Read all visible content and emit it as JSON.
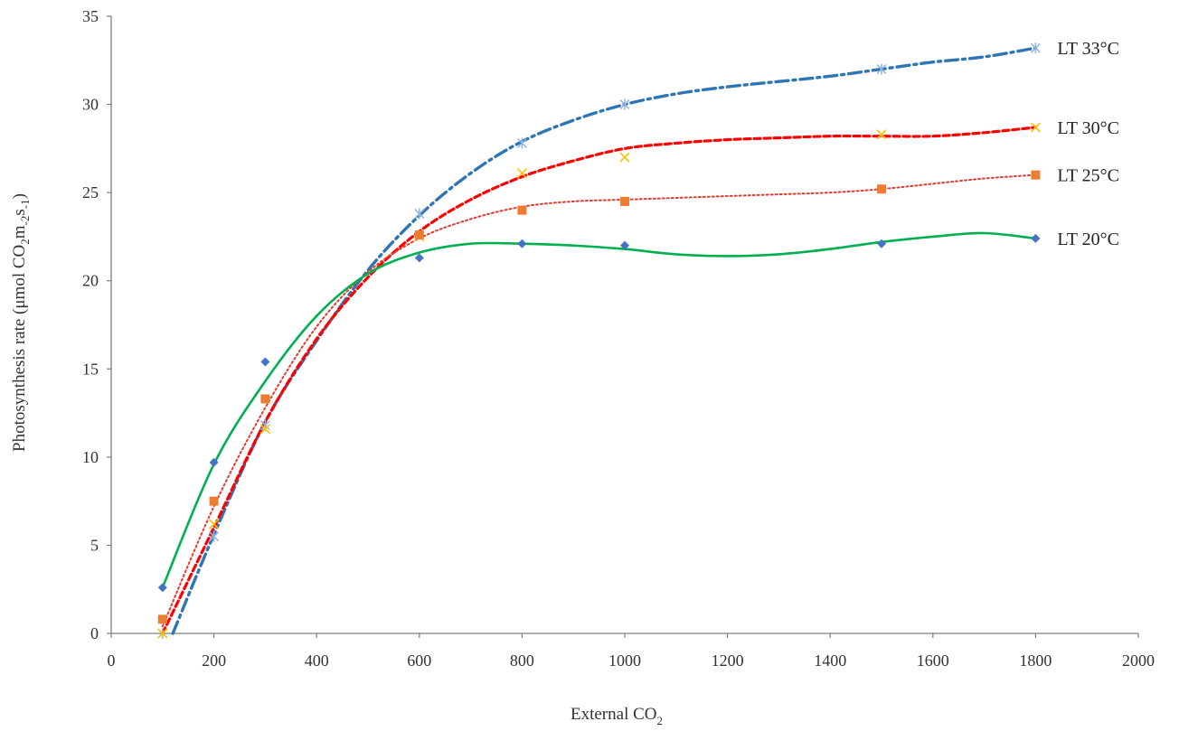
{
  "chart_data": {
    "type": "scatter",
    "title": "",
    "xlabel": "External  CO",
    "xlabel_sub": "2",
    "ylabel_parts": [
      "Photosynthesis  rate (μmol  CO",
      "2",
      "m",
      "-2",
      "s",
      "-1",
      ")"
    ],
    "xlim": [
      0,
      2000
    ],
    "ylim": [
      0,
      35
    ],
    "xticks": [
      0,
      200,
      400,
      600,
      800,
      1000,
      1200,
      1400,
      1600,
      1800,
      2000
    ],
    "yticks": [
      0,
      5,
      10,
      15,
      20,
      25,
      30,
      35
    ],
    "grid": false,
    "legend": "inline labels at right end of each curve",
    "x": [
      100,
      200,
      300,
      600,
      800,
      1000,
      1500,
      1800
    ],
    "series": [
      {
        "name": "LT 33°C",
        "color": "#2e75b6",
        "marker_color": "#8fb4e3",
        "marker": "asterisk",
        "line_style": "dash-dot",
        "values": [
          0.0,
          5.5,
          11.8,
          23.8,
          27.8,
          30.0,
          32.0,
          33.2
        ],
        "fit": [
          [
            120,
            0
          ],
          [
            200,
            5.6
          ],
          [
            300,
            12.0
          ],
          [
            400,
            16.6
          ],
          [
            500,
            20.6
          ],
          [
            600,
            23.7
          ],
          [
            700,
            26.1
          ],
          [
            800,
            27.9
          ],
          [
            900,
            29.1
          ],
          [
            1000,
            30.0
          ],
          [
            1100,
            30.6
          ],
          [
            1200,
            31.0
          ],
          [
            1300,
            31.3
          ],
          [
            1400,
            31.6
          ],
          [
            1500,
            32.0
          ],
          [
            1600,
            32.4
          ],
          [
            1700,
            32.7
          ],
          [
            1800,
            33.2
          ]
        ]
      },
      {
        "name": "LT 30°C",
        "color": "#ff0000",
        "marker_color": "#ffc000",
        "marker": "x",
        "line_style": "dashed",
        "values": [
          0.0,
          6.2,
          11.6,
          22.5,
          26.1,
          27.0,
          28.3,
          28.7
        ],
        "fit": [
          [
            100,
            0
          ],
          [
            200,
            6.0
          ],
          [
            300,
            12.0
          ],
          [
            400,
            16.7
          ],
          [
            500,
            20.2
          ],
          [
            600,
            22.8
          ],
          [
            700,
            24.6
          ],
          [
            800,
            25.9
          ],
          [
            900,
            26.8
          ],
          [
            1000,
            27.5
          ],
          [
            1100,
            27.8
          ],
          [
            1200,
            28.0
          ],
          [
            1300,
            28.1
          ],
          [
            1400,
            28.2
          ],
          [
            1500,
            28.2
          ],
          [
            1600,
            28.2
          ],
          [
            1700,
            28.4
          ],
          [
            1800,
            28.7
          ]
        ]
      },
      {
        "name": "LT 25°C",
        "color": "#e03c31",
        "marker_color": "#ed7d31",
        "marker": "square",
        "line_style": "dotted",
        "values": [
          0.8,
          7.5,
          13.3,
          22.6,
          24.0,
          24.5,
          25.2,
          26.0
        ],
        "fit": [
          [
            100,
            0.4
          ],
          [
            200,
            7.2
          ],
          [
            300,
            12.8
          ],
          [
            400,
            17.4
          ],
          [
            500,
            20.5
          ],
          [
            600,
            22.4
          ],
          [
            700,
            23.5
          ],
          [
            800,
            24.2
          ],
          [
            900,
            24.5
          ],
          [
            1000,
            24.6
          ],
          [
            1100,
            24.7
          ],
          [
            1200,
            24.8
          ],
          [
            1300,
            24.9
          ],
          [
            1400,
            25.0
          ],
          [
            1500,
            25.2
          ],
          [
            1600,
            25.5
          ],
          [
            1700,
            25.8
          ],
          [
            1800,
            26.0
          ]
        ]
      },
      {
        "name": "LT 20°C",
        "color": "#00b050",
        "marker_color": "#4472c4",
        "marker": "diamond",
        "line_style": "solid",
        "values": [
          2.6,
          9.7,
          15.4,
          21.3,
          22.1,
          22.0,
          22.1,
          22.4
        ],
        "fit": [
          [
            100,
            2.6
          ],
          [
            200,
            9.6
          ],
          [
            300,
            14.3
          ],
          [
            400,
            18.0
          ],
          [
            500,
            20.4
          ],
          [
            600,
            21.6
          ],
          [
            700,
            22.1
          ],
          [
            800,
            22.1
          ],
          [
            900,
            22.0
          ],
          [
            1000,
            21.8
          ],
          [
            1100,
            21.5
          ],
          [
            1200,
            21.4
          ],
          [
            1300,
            21.5
          ],
          [
            1400,
            21.8
          ],
          [
            1500,
            22.2
          ],
          [
            1600,
            22.5
          ],
          [
            1700,
            22.7
          ],
          [
            1800,
            22.4
          ]
        ]
      }
    ]
  }
}
